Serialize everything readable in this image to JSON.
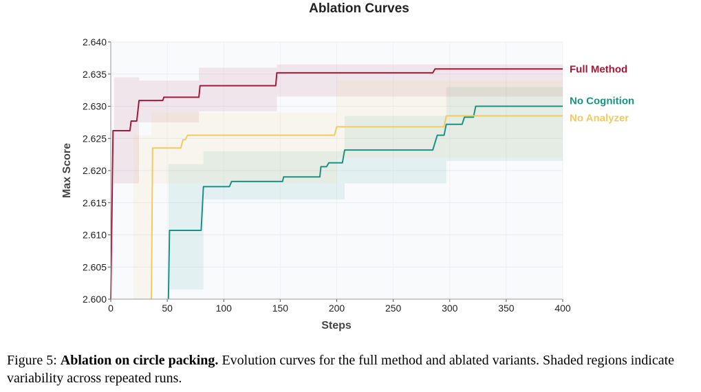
{
  "chart_data": {
    "type": "line",
    "title": "Ablation Curves",
    "xlabel": "Steps",
    "ylabel": "Max Score",
    "xlim": [
      0,
      400
    ],
    "ylim": [
      2.6,
      2.64
    ],
    "xticks": [
      "0",
      "50",
      "100",
      "150",
      "200",
      "250",
      "300",
      "350",
      "400"
    ],
    "yticks": [
      "2.600",
      "2.605",
      "2.610",
      "2.615",
      "2.620",
      "2.625",
      "2.630",
      "2.635",
      "2.640"
    ],
    "grid": true,
    "legend": "end-of-line labels",
    "background_color": "#f8fafc",
    "series": [
      {
        "name": "Full Method",
        "color": "#a3193a",
        "steps": [
          [
            0,
            2.6
          ],
          [
            2,
            2.6262
          ],
          [
            17,
            2.6262
          ],
          [
            18,
            2.6277
          ],
          [
            23,
            2.6277
          ],
          [
            25,
            2.6309
          ],
          [
            46,
            2.6309
          ],
          [
            47,
            2.6314
          ],
          [
            78,
            2.6314
          ],
          [
            79,
            2.6332
          ],
          [
            146,
            2.6332
          ],
          [
            147,
            2.6352
          ],
          [
            285,
            2.6352
          ],
          [
            287,
            2.6358
          ],
          [
            400,
            2.6358
          ]
        ],
        "band": [
          {
            "x": [
              3,
              25
            ],
            "low": 2.618,
            "high": 2.6345
          },
          {
            "x": [
              25,
              78
            ],
            "low": 2.6275,
            "high": 2.634
          },
          {
            "x": [
              78,
              147
            ],
            "low": 2.6292,
            "high": 2.636
          },
          {
            "x": [
              147,
              400
            ],
            "low": 2.6315,
            "high": 2.6365
          }
        ]
      },
      {
        "name": "No Cognition",
        "color": "#1a9184",
        "steps": [
          [
            51,
            2.6
          ],
          [
            52,
            2.6107
          ],
          [
            80,
            2.6107
          ],
          [
            82,
            2.6175
          ],
          [
            105,
            2.6175
          ],
          [
            107,
            2.6183
          ],
          [
            152,
            2.6183
          ],
          [
            153,
            2.619
          ],
          [
            185,
            2.619
          ],
          [
            186,
            2.6206
          ],
          [
            191,
            2.6206
          ],
          [
            193,
            2.6212
          ],
          [
            205,
            2.6212
          ],
          [
            207,
            2.6232
          ],
          [
            285,
            2.6232
          ],
          [
            289,
            2.6255
          ],
          [
            295,
            2.6255
          ],
          [
            297,
            2.6272
          ],
          [
            311,
            2.6272
          ],
          [
            313,
            2.6283
          ],
          [
            321,
            2.6283
          ],
          [
            323,
            2.63
          ],
          [
            400,
            2.63
          ]
        ],
        "band": [
          {
            "x": [
              51,
              82
            ],
            "low": 2.6015,
            "high": 2.621
          },
          {
            "x": [
              82,
              207
            ],
            "low": 2.6155,
            "high": 2.623
          },
          {
            "x": [
              207,
              297
            ],
            "low": 2.618,
            "high": 2.6285
          },
          {
            "x": [
              297,
              400
            ],
            "low": 2.6215,
            "high": 2.633
          }
        ]
      },
      {
        "name": "No Analyzer",
        "color": "#f3ca5c",
        "steps": [
          [
            36,
            2.6
          ],
          [
            37,
            2.6235
          ],
          [
            62,
            2.6235
          ],
          [
            64,
            2.6248
          ],
          [
            66,
            2.6248
          ],
          [
            68,
            2.6255
          ],
          [
            198,
            2.6255
          ],
          [
            200,
            2.6268
          ],
          [
            295,
            2.6268
          ],
          [
            297,
            2.6285
          ],
          [
            400,
            2.6285
          ]
        ],
        "band": [
          {
            "x": [
              20,
              36
            ],
            "low": 2.6,
            "high": 2.6255
          },
          {
            "x": [
              36,
              200
            ],
            "low": 2.618,
            "high": 2.629
          },
          {
            "x": [
              200,
              400
            ],
            "low": 2.622,
            "high": 2.634
          }
        ]
      }
    ]
  },
  "caption": {
    "label": "Figure 5:",
    "bold": "Ablation on circle packing.",
    "text": "Evolution curves for the full method and ablated variants. Shaded regions indicate variability across repeated runs."
  }
}
